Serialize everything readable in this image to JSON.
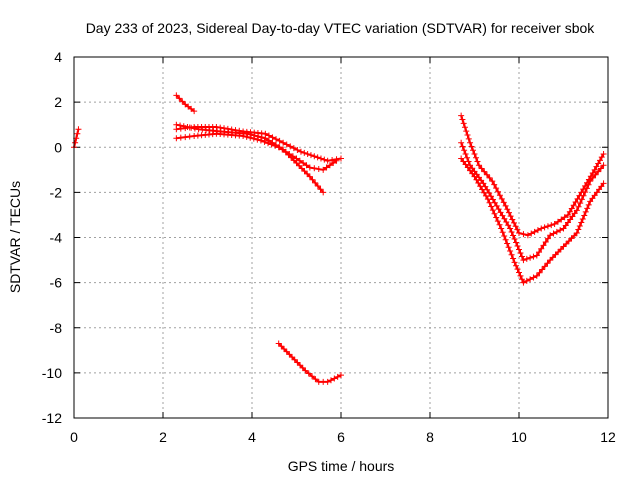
{
  "chart_data": {
    "type": "scatter",
    "title": "Day 233 of 2023, Sidereal Day-to-day VTEC variation (SDTVAR) for receiver sbok",
    "xlabel": "GPS time / hours",
    "ylabel": "SDTVAR / TECUs",
    "xlim": [
      0,
      12
    ],
    "ylim": [
      -12,
      4
    ],
    "xticks": [
      0,
      2,
      4,
      6,
      8,
      10,
      12
    ],
    "yticks": [
      -12,
      -10,
      -8,
      -6,
      -4,
      -2,
      0,
      2,
      4
    ],
    "grid": true,
    "marker": "plus",
    "color": "#ff0000",
    "series": [
      {
        "name": "s1",
        "x": [
          0.0,
          0.05,
          0.1
        ],
        "y": [
          0.0,
          0.4,
          0.8
        ]
      },
      {
        "name": "s2",
        "x": [
          2.3,
          2.5,
          2.7
        ],
        "y": [
          2.3,
          1.9,
          1.6
        ]
      },
      {
        "name": "s3",
        "x": [
          2.3,
          2.7,
          3.2,
          3.8,
          4.3,
          4.7,
          5.1,
          5.4,
          5.7,
          6.0
        ],
        "y": [
          0.8,
          0.9,
          0.9,
          0.7,
          0.6,
          0.2,
          -0.2,
          -0.4,
          -0.6,
          -0.5
        ]
      },
      {
        "name": "s4",
        "x": [
          2.3,
          2.7,
          3.2,
          3.8,
          4.2,
          4.6,
          5.0,
          5.3,
          5.6,
          5.9
        ],
        "y": [
          0.4,
          0.5,
          0.6,
          0.5,
          0.3,
          0.0,
          -0.5,
          -0.9,
          -1.0,
          -0.6
        ]
      },
      {
        "name": "s5",
        "x": [
          2.3,
          2.8,
          3.3,
          3.9,
          4.3,
          4.7,
          5.0,
          5.3,
          5.6
        ],
        "y": [
          1.0,
          0.8,
          0.7,
          0.6,
          0.4,
          -0.1,
          -0.7,
          -1.3,
          -2.0
        ]
      },
      {
        "name": "s6",
        "x": [
          4.6,
          4.9,
          5.2,
          5.5,
          5.7,
          6.0
        ],
        "y": [
          -8.7,
          -9.3,
          -9.9,
          -10.4,
          -10.4,
          -10.1
        ]
      },
      {
        "name": "s7",
        "x": [
          8.7,
          8.9,
          9.1,
          9.4,
          9.7,
          10.0,
          10.2,
          10.5,
          10.8,
          11.1,
          11.4,
          11.7,
          11.9
        ],
        "y": [
          1.4,
          0.2,
          -0.8,
          -1.5,
          -2.6,
          -3.8,
          -3.9,
          -3.6,
          -3.4,
          -3.0,
          -2.0,
          -1.0,
          -0.3
        ]
      },
      {
        "name": "s8",
        "x": [
          8.7,
          8.9,
          9.2,
          9.5,
          9.8,
          10.1,
          10.4,
          10.7,
          11.0,
          11.3,
          11.6,
          11.9
        ],
        "y": [
          0.2,
          -0.8,
          -1.6,
          -2.6,
          -3.6,
          -5.0,
          -4.8,
          -3.9,
          -3.6,
          -2.8,
          -1.5,
          -0.8
        ]
      },
      {
        "name": "s9",
        "x": [
          8.7,
          9.0,
          9.3,
          9.6,
          9.9,
          10.1,
          10.4,
          10.7,
          11.0,
          11.3,
          11.6,
          11.9
        ],
        "y": [
          -0.5,
          -1.3,
          -2.3,
          -3.6,
          -5.1,
          -6.0,
          -5.7,
          -5.0,
          -4.4,
          -3.8,
          -2.4,
          -1.6
        ]
      }
    ]
  }
}
